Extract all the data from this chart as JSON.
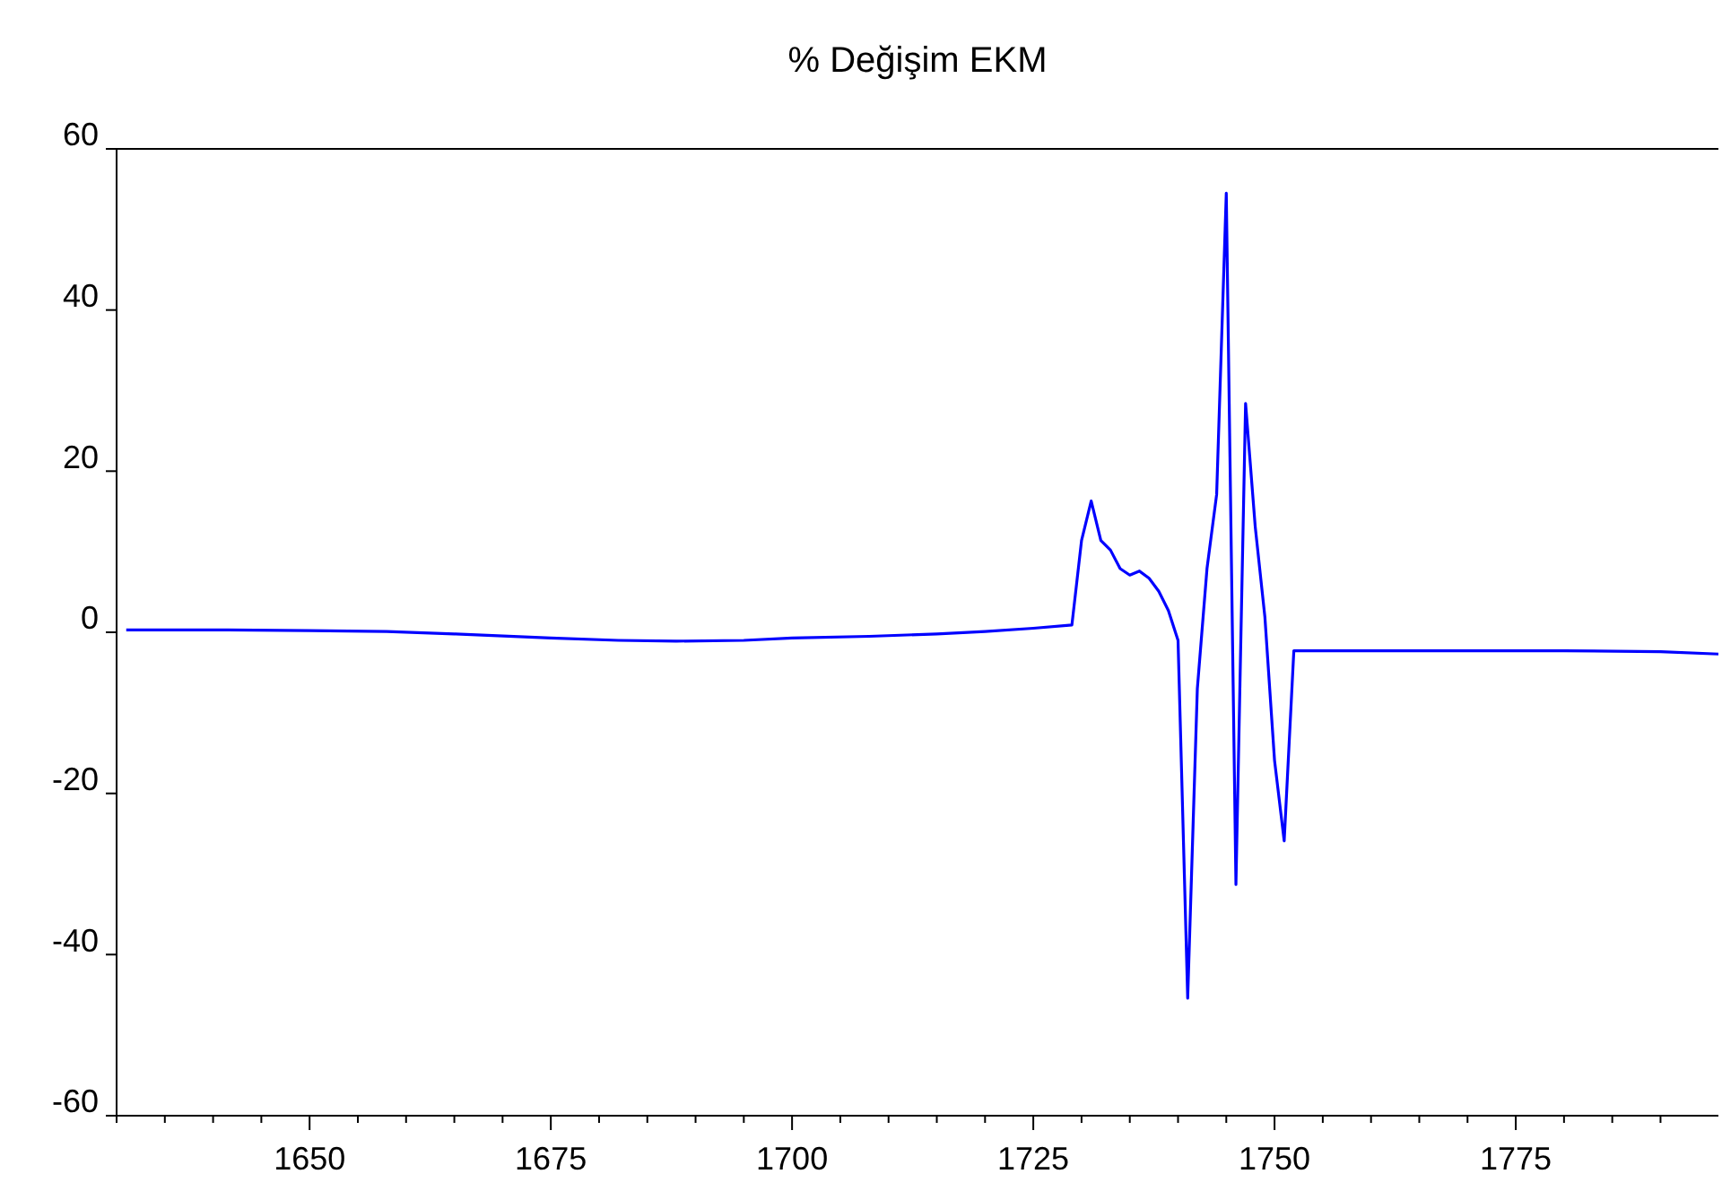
{
  "chart_data": {
    "type": "line",
    "title": "% Değişim EKM",
    "x": [
      1631,
      1640,
      1650,
      1658,
      1665,
      1675,
      1682,
      1688,
      1695,
      1700,
      1708,
      1715,
      1720,
      1725,
      1729,
      1730,
      1731,
      1732,
      1733,
      1734,
      1735,
      1736,
      1737,
      1738,
      1739,
      1740,
      1741,
      1742,
      1743,
      1744,
      1745,
      1746,
      1747,
      1748,
      1749,
      1750,
      1751,
      1752,
      1753,
      1765,
      1780,
      1790,
      1796
    ],
    "series": [
      {
        "color": "#0000ff",
        "values": [
          0.3,
          0.3,
          0.2,
          0.1,
          -0.2,
          -0.7,
          -1.0,
          -1.1,
          -1.0,
          -0.7,
          -0.5,
          -0.2,
          0.1,
          0.5,
          0.9,
          11.4,
          16.3,
          11.4,
          10.2,
          7.9,
          7.1,
          7.6,
          6.7,
          5.1,
          2.7,
          -1.0,
          -45.4,
          -7.0,
          7.9,
          17.1,
          54.5,
          -31.3,
          28.4,
          13.1,
          1.9,
          -15.9,
          -25.9,
          -2.3,
          -2.3,
          -2.3,
          -2.3,
          -2.4,
          -2.7
        ]
      }
    ],
    "xlim": [
      1630,
      1796
    ],
    "xticks": [
      {
        "value": 1630,
        "label": null
      },
      {
        "value": 1635,
        "label": null
      },
      {
        "value": 1640,
        "label": null
      },
      {
        "value": 1645,
        "label": null
      },
      1650,
      {
        "value": 1655,
        "label": null
      },
      {
        "value": 1660,
        "label": null
      },
      {
        "value": 1665,
        "label": null
      },
      {
        "value": 1670,
        "label": null
      },
      1675,
      {
        "value": 1680,
        "label": null
      },
      {
        "value": 1685,
        "label": null
      },
      {
        "value": 1690,
        "label": null
      },
      {
        "value": 1695,
        "label": null
      },
      1700,
      {
        "value": 1705,
        "label": null
      },
      {
        "value": 1710,
        "label": null
      },
      {
        "value": 1715,
        "label": null
      },
      {
        "value": 1720,
        "label": null
      },
      1725,
      {
        "value": 1730,
        "label": null
      },
      {
        "value": 1735,
        "label": null
      },
      {
        "value": 1740,
        "label": null
      },
      {
        "value": 1745,
        "label": null
      },
      1750,
      {
        "value": 1755,
        "label": null
      },
      {
        "value": 1760,
        "label": null
      },
      {
        "value": 1765,
        "label": null
      },
      {
        "value": 1770,
        "label": null
      },
      1775,
      {
        "value": 1780,
        "label": null
      },
      {
        "value": 1785,
        "label": null
      },
      {
        "value": 1790,
        "label": null
      }
    ],
    "ylim": [
      -60,
      60
    ],
    "yticks": [
      -60,
      -40,
      -20,
      0,
      20,
      40,
      60
    ],
    "grid": false,
    "marker": "none",
    "line_style": "solid"
  }
}
